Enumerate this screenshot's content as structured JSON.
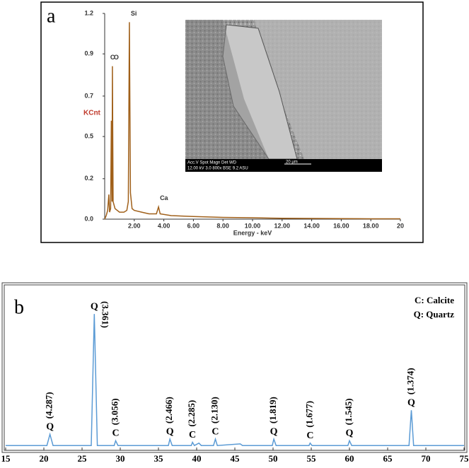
{
  "chart_data": [
    {
      "type": "line",
      "panel_label": "a",
      "x_label": "Energy - keV",
      "y_label": "KCnt",
      "color": "#a0601a",
      "x": [
        0,
        0.1,
        0.2,
        0.28,
        0.33,
        0.4,
        0.45,
        0.5,
        0.52,
        0.57,
        0.7,
        1.0,
        1.3,
        1.5,
        1.6,
        1.67,
        1.74,
        1.85,
        2.0,
        2.5,
        3.0,
        3.5,
        3.64,
        3.75,
        4.5,
        6,
        8,
        10,
        12,
        14,
        16,
        18,
        20
      ],
      "values": [
        0,
        0.02,
        0.05,
        0.14,
        0.04,
        0.06,
        0.56,
        0.1,
        0.87,
        0.1,
        0.06,
        0.04,
        0.04,
        0.05,
        0.1,
        1.12,
        0.15,
        0.06,
        0.05,
        0.04,
        0.03,
        0.03,
        0.07,
        0.03,
        0.02,
        0.015,
        0.01,
        0.008,
        0.005,
        0.004,
        0.003,
        0.002,
        0.002
      ],
      "peak_labels": [
        {
          "label": "C",
          "x": 0.28
        },
        {
          "label": "O",
          "x": 0.52
        },
        {
          "label": "Si",
          "x": 1.67
        },
        {
          "label": "Ca",
          "x": 3.64
        }
      ],
      "xlim": [
        0,
        20
      ],
      "xticks": [
        {
          "value": 2,
          "label": "2.00"
        },
        {
          "value": 4,
          "label": "4.00"
        },
        {
          "value": 6,
          "label": "6.00"
        },
        {
          "value": 8,
          "label": "8.00"
        },
        {
          "value": 10,
          "label": "10.00"
        },
        {
          "value": 12,
          "label": "12.00"
        },
        {
          "value": 14,
          "label": "14.00"
        },
        {
          "value": 16,
          "label": "16.00"
        },
        {
          "value": 18,
          "label": "18.00"
        },
        20
      ],
      "ylim": [
        0,
        1.17
      ],
      "yticks": [
        {
          "value": 0,
          "label": "0.0"
        },
        {
          "value": 0.23,
          "label": "0.2"
        },
        {
          "value": 0.47,
          "label": "0.5"
        },
        {
          "value": 0.7,
          "label": "0.7"
        },
        {
          "value": 0.94,
          "label": "0.9"
        },
        {
          "value": 1.17,
          "label": "1.2"
        }
      ],
      "inset": {
        "header": "Acc.V   Spot  Magn   Det   WD",
        "settings": "12.00 kV  3.0   800x   BSE  9.2   ASU",
        "scale": "20 µm"
      }
    },
    {
      "type": "line",
      "panel_label": "b",
      "color": "#5b9bd5",
      "x": [
        15,
        20.4,
        20.8,
        21.2,
        26.2,
        26.6,
        27,
        29.2,
        29.4,
        29.7,
        36.3,
        36.5,
        36.8,
        39.3,
        39.45,
        39.7,
        40.3,
        40.6,
        42.2,
        42.45,
        42.7,
        45.7,
        46,
        49.9,
        50.1,
        50.4,
        54.7,
        54.85,
        55.1,
        59.8,
        60,
        60.3,
        67.8,
        68.1,
        68.4,
        75
      ],
      "values": [
        3,
        3,
        10,
        3,
        3,
        85,
        3,
        3,
        6,
        3,
        3,
        7,
        3,
        3,
        5,
        3,
        4.5,
        3,
        3,
        7,
        3,
        4,
        3,
        3,
        7,
        3,
        3,
        4.5,
        3,
        3,
        6,
        3,
        3,
        25,
        3,
        3
      ],
      "peak_labels": [
        {
          "phase": "Q",
          "d": "(4.287)",
          "x": 20.8
        },
        {
          "phase": "Q",
          "d": "(3.361)",
          "x": 26.6
        },
        {
          "phase": "C",
          "d": "(3.056)",
          "x": 29.4
        },
        {
          "phase": "Q",
          "d": "(2.466)",
          "x": 36.5
        },
        {
          "phase": "C",
          "d": "(2.285)",
          "x": 39.45
        },
        {
          "phase": "C",
          "d": "(2.130)",
          "x": 42.45
        },
        {
          "phase": "Q",
          "d": "(1.819)",
          "x": 50.1
        },
        {
          "phase": "C",
          "d": "(1.677)",
          "x": 54.85
        },
        {
          "phase": "Q",
          "d": "(1.545)",
          "x": 60
        },
        {
          "phase": "Q",
          "d": "(1.374)",
          "x": 68.1
        }
      ],
      "legend_notes": [
        "C: Calcite",
        "Q: Quartz"
      ],
      "xlim": [
        15,
        75
      ],
      "xticks": [
        15,
        20,
        25,
        30,
        35,
        40,
        45,
        50,
        55,
        60,
        65,
        70,
        75
      ],
      "ylim": [
        0,
        100
      ]
    }
  ]
}
